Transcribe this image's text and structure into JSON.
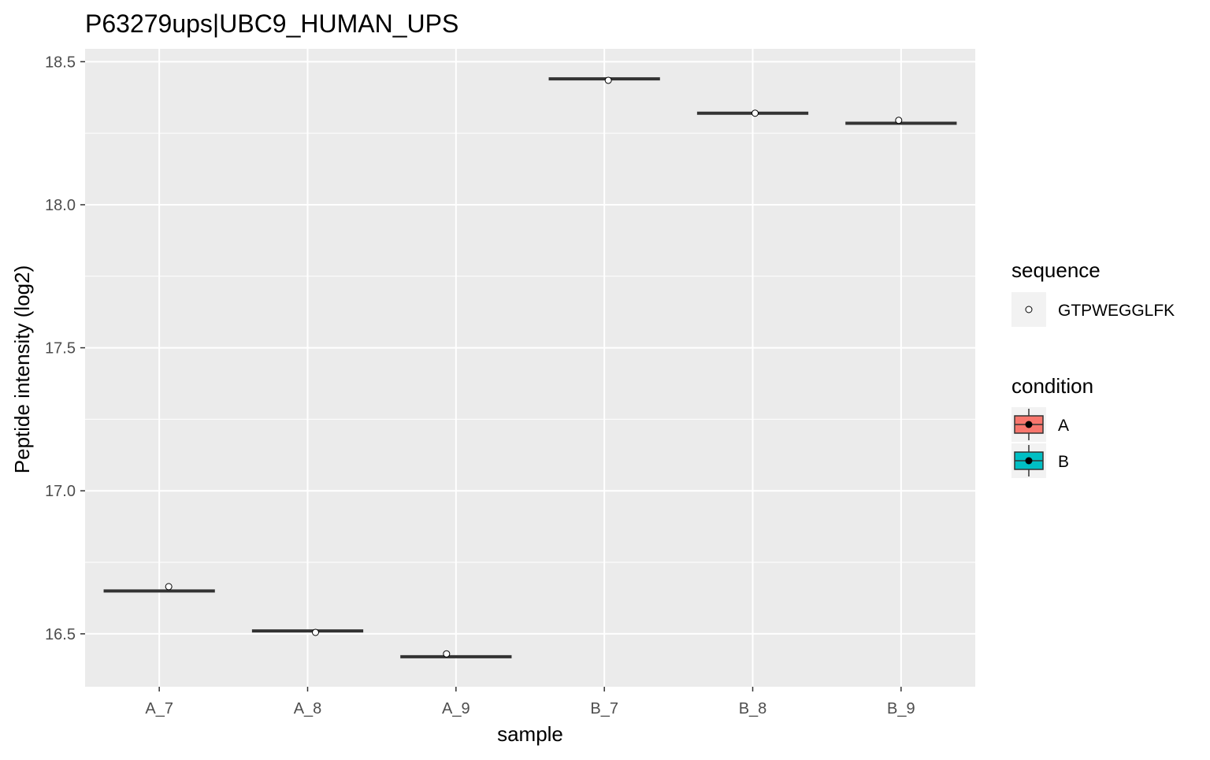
{
  "chart_data": {
    "type": "boxplot",
    "title": "P63279ups|UBC9_HUMAN_UPS",
    "xlabel": "sample",
    "ylabel": "Peptide intensity (log2)",
    "categories": [
      "A_7",
      "A_8",
      "A_9",
      "B_7",
      "B_8",
      "B_9"
    ],
    "condition_of_category": [
      "A",
      "A",
      "A",
      "B",
      "B",
      "B"
    ],
    "medians": [
      16.65,
      16.51,
      16.42,
      18.44,
      18.32,
      18.285
    ],
    "points": [
      {
        "sequence": "GTPWEGGLFK",
        "x": "A_7",
        "y": 16.665
      },
      {
        "sequence": "GTPWEGGLFK",
        "x": "A_8",
        "y": 16.505
      },
      {
        "sequence": "GTPWEGGLFK",
        "x": "A_9",
        "y": 16.43
      },
      {
        "sequence": "GTPWEGGLFK",
        "x": "B_7",
        "y": 18.435
      },
      {
        "sequence": "GTPWEGGLFK",
        "x": "B_8",
        "y": 18.32
      },
      {
        "sequence": "GTPWEGGLFK",
        "x": "B_9",
        "y": 18.295
      }
    ],
    "yticks": [
      16.5,
      17.0,
      17.5,
      18.0,
      18.5
    ],
    "ytick_labels": [
      "16.5",
      "17.0",
      "17.5",
      "18.0",
      "18.5"
    ],
    "ylim": [
      16.315,
      18.545
    ],
    "grid": true,
    "legend_placement": "right",
    "legends": {
      "sequence": {
        "title": "sequence",
        "entries": [
          "GTPWEGGLFK"
        ]
      },
      "condition": {
        "title": "condition",
        "entries": [
          "A",
          "B"
        ],
        "colors": [
          "#F8766D",
          "#00BFC4"
        ]
      }
    },
    "colors": {
      "panel_background": "#EBEBEB",
      "gridline": "#FFFFFF",
      "median_line": "#333333",
      "axis_text": "#4D4D4D",
      "legend_key_background": "#F2F2F2"
    }
  }
}
